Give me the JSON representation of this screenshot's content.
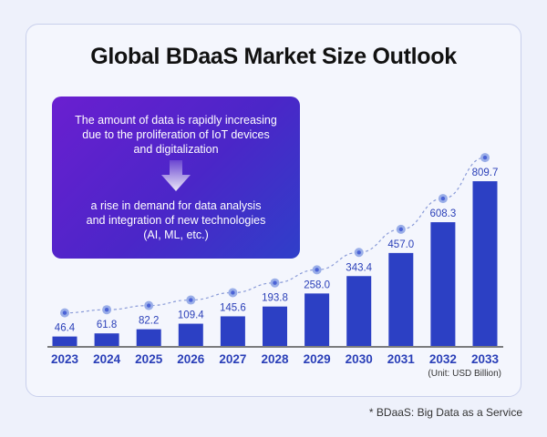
{
  "title": "Global BDaaS Market Size Outlook",
  "callout": {
    "text_top": "The amount of data is rapidly increasing\ndue to the proliferation of IoT devices\nand digitalization",
    "text_bottom": "a rise in demand for data analysis\nand integration of new technologies\n(AI, ML, etc.)"
  },
  "footnote": "* BDaaS: Big Data as a Service",
  "chart_data": {
    "type": "bar",
    "title": "Global BDaaS Market Size Outlook",
    "categories": [
      "2023",
      "2024",
      "2025",
      "2026",
      "2027",
      "2028",
      "2029",
      "2030",
      "2031",
      "2032",
      "2033"
    ],
    "values": [
      46.4,
      61.8,
      82.2,
      109.4,
      145.6,
      193.8,
      258.0,
      343.4,
      457.0,
      608.3,
      809.7
    ],
    "value_labels": [
      "46.4",
      "61.8",
      "82.2",
      "109.4",
      "145.6",
      "193.8",
      "258.0",
      "343.4",
      "457.0",
      "608.3",
      "809.7"
    ],
    "unit_label": "(Unit: USD Billion)",
    "trend_line": "dashed",
    "ylim": [
      0,
      810
    ],
    "grid": false,
    "colors": {
      "bar": "#2c40c4",
      "label": "#2a3fb8",
      "dot": "#9aaee8",
      "dot_center": "#4b63d6"
    }
  }
}
